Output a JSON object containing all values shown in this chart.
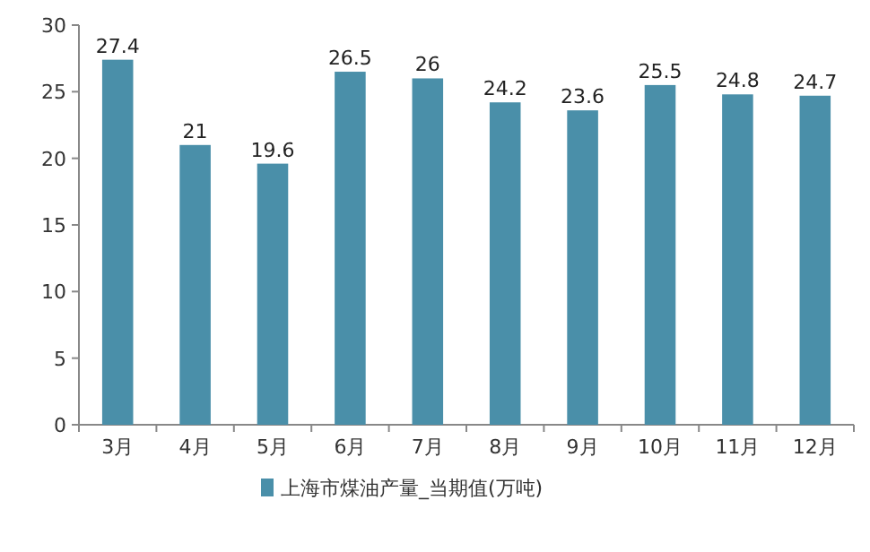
{
  "chart_data": {
    "type": "bar",
    "categories": [
      "3月",
      "4月",
      "5月",
      "6月",
      "7月",
      "8月",
      "9月",
      "10月",
      "11月",
      "12月"
    ],
    "series": [
      {
        "name": "上海市煤油产量_当期值(万吨)",
        "color": "#4a8fa9",
        "values": [
          27.4,
          21,
          19.6,
          26.5,
          26,
          24.2,
          23.6,
          25.5,
          24.8,
          24.7
        ]
      }
    ],
    "ylim": [
      0,
      30
    ],
    "yticks": [
      0,
      5,
      10,
      15,
      20,
      25,
      30
    ],
    "data_labels": true,
    "legend": "bottom"
  }
}
